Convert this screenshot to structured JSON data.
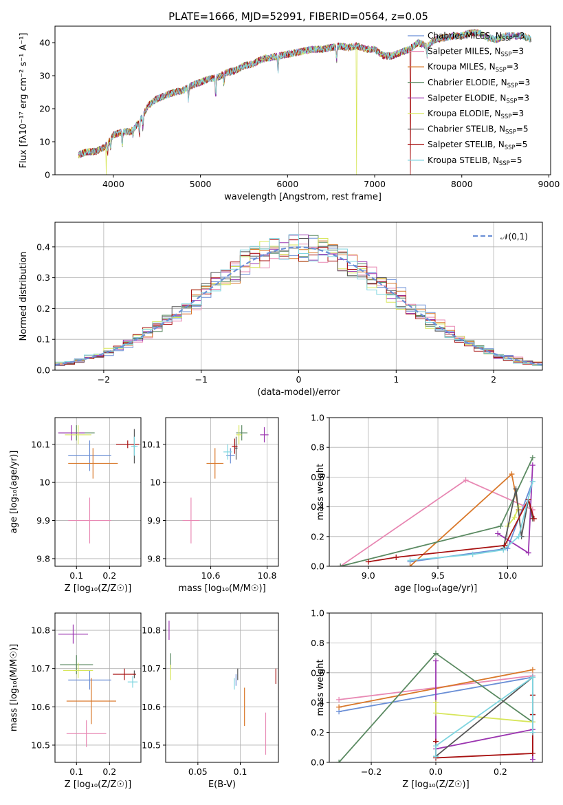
{
  "colors": {
    "Chabrier MILES": "#6b8fd6",
    "Salpeter MILES": "#e889b4",
    "Kroupa MILES": "#d9782a",
    "Chabrier ELODIE": "#5b8a62",
    "Salpeter ELODIE": "#9b35b0",
    "Kroupa ELODIE": "#d7e65a",
    "Chabrier STELIB": "#555555",
    "Salpeter STELIB": "#a81212",
    "Kroupa STELIB": "#7fd5e0"
  },
  "chart_data": [
    {
      "id": "spectrum",
      "type": "line",
      "title": "PLATE=1666, MJD=52991, FIBERID=0564, z=0.05",
      "xlabel": "wavelength [Angstrom, rest frame]",
      "ylabel": "Flux [fλ10⁻¹⁷ erg cm⁻² s⁻¹ A⁻¹]",
      "xlim": [
        3330,
        9020
      ],
      "ylim": [
        0,
        45
      ],
      "xticks": [
        4000,
        5000,
        6000,
        7000,
        8000,
        9000
      ],
      "yticks": [
        0,
        10,
        20,
        30,
        40
      ],
      "grid": false,
      "legend_position": "top-right",
      "continuum": [
        [
          3600,
          6
        ],
        [
          3700,
          7
        ],
        [
          3800,
          7
        ],
        [
          3900,
          8.5
        ],
        [
          3950,
          10
        ],
        [
          4000,
          12
        ],
        [
          4100,
          13
        ],
        [
          4200,
          13
        ],
        [
          4300,
          16
        ],
        [
          4400,
          21
        ],
        [
          4500,
          23
        ],
        [
          4600,
          24
        ],
        [
          4700,
          25
        ],
        [
          4800,
          25.5
        ],
        [
          4900,
          27
        ],
        [
          5000,
          28
        ],
        [
          5100,
          29
        ],
        [
          5200,
          29.5
        ],
        [
          5300,
          31
        ],
        [
          5400,
          31.5
        ],
        [
          5500,
          33
        ],
        [
          5600,
          33.5
        ],
        [
          5700,
          35
        ],
        [
          5800,
          35.5
        ],
        [
          5900,
          36
        ],
        [
          6000,
          36.5
        ],
        [
          6100,
          37
        ],
        [
          6200,
          37.5
        ],
        [
          6300,
          38
        ],
        [
          6400,
          38
        ],
        [
          6500,
          38.5
        ],
        [
          6600,
          39
        ],
        [
          6700,
          38.5
        ],
        [
          6800,
          39
        ],
        [
          6900,
          38
        ],
        [
          7000,
          38
        ],
        [
          7100,
          36
        ],
        [
          7200,
          36
        ],
        [
          7300,
          37
        ],
        [
          7400,
          38
        ],
        [
          7500,
          40
        ],
        [
          7600,
          39
        ],
        [
          7700,
          41
        ],
        [
          7800,
          41.5
        ],
        [
          7900,
          42
        ],
        [
          8000,
          42
        ],
        [
          8100,
          43
        ],
        [
          8200,
          43
        ],
        [
          8300,
          41.5
        ],
        [
          8400,
          41
        ],
        [
          8500,
          42
        ],
        [
          8600,
          42
        ],
        [
          8700,
          42
        ],
        [
          8800,
          41
        ]
      ],
      "absorption_lines": [
        [
          3934,
          3
        ],
        [
          3969,
          3
        ],
        [
          4102,
          4
        ],
        [
          4227,
          2
        ],
        [
          4300,
          4
        ],
        [
          4340,
          4
        ],
        [
          4861,
          4
        ],
        [
          5175,
          6
        ],
        [
          5270,
          3
        ],
        [
          5890,
          5
        ],
        [
          6563,
          4
        ],
        [
          7600,
          3
        ]
      ],
      "dropouts": [
        {
          "model": "Kroupa ELODIE",
          "wavelengths": [
            3920,
            6790
          ]
        },
        {
          "model": "Salpeter STELIB",
          "wavelengths": [
            7410
          ]
        }
      ],
      "series": [
        {
          "name": "Chabrier MILES, N_SSP=3"
        },
        {
          "name": "Salpeter MILES, N_SSP=3"
        },
        {
          "name": "Kroupa MILES, N_SSP=3"
        },
        {
          "name": "Chabrier ELODIE, N_SSP=3"
        },
        {
          "name": "Salpeter ELODIE, N_SSP=3"
        },
        {
          "name": "Kroupa ELODIE, N_SSP=3"
        },
        {
          "name": "Chabrier STELIB, N_SSP=5"
        },
        {
          "name": "Salpeter STELIB, N_SSP=5"
        },
        {
          "name": "Kroupa STELIB, N_SSP=5"
        }
      ]
    },
    {
      "id": "residuals",
      "type": "step",
      "xlabel": "(data-model)/error",
      "ylabel": "Normed distribution",
      "xlim": [
        -2.5,
        2.5
      ],
      "ylim": [
        0,
        0.48
      ],
      "xticks": [
        -2,
        -1,
        0,
        1,
        2
      ],
      "yticks": [
        0.0,
        0.1,
        0.2,
        0.3,
        0.4
      ],
      "grid": true,
      "legend_position": "top-right",
      "reference": {
        "label": "𝒩(0,1)",
        "mean": 0,
        "sigma": 1
      }
    },
    {
      "id": "age_vs_z",
      "type": "errorbar",
      "xlabel": "Z [log₁₀(Z/Z☉)]",
      "ylabel": "age  [log₁₀(age/yr)]",
      "xlim": [
        0.035,
        0.295
      ],
      "ylim": [
        9.78,
        10.17
      ],
      "xticks": [
        0.1,
        0.2
      ],
      "yticks": [
        9.8,
        9.9,
        10.0,
        10.1
      ],
      "grid": true,
      "points": [
        {
          "model": "Chabrier MILES",
          "x": 0.14,
          "y": 10.07,
          "xerr": 0.065,
          "yerr": 0.04
        },
        {
          "model": "Salpeter MILES",
          "x": 0.14,
          "y": 9.9,
          "xerr": 0.065,
          "yerr": 0.06
        },
        {
          "model": "Kroupa MILES",
          "x": 0.15,
          "y": 10.05,
          "xerr": 0.075,
          "yerr": 0.04
        },
        {
          "model": "Chabrier ELODIE",
          "x": 0.1,
          "y": 10.13,
          "xerr": 0.055,
          "yerr": 0.02
        },
        {
          "model": "Salpeter ELODIE",
          "x": 0.085,
          "y": 10.13,
          "xerr": 0.04,
          "yerr": 0.02
        },
        {
          "model": "Kroupa ELODIE",
          "x": 0.105,
          "y": 10.125,
          "xerr": 0.04,
          "yerr": 0.025
        },
        {
          "model": "Chabrier STELIB",
          "x": 0.275,
          "y": 10.095,
          "xerr": 0.005,
          "yerr": 0.045
        },
        {
          "model": "Salpeter STELIB",
          "x": 0.255,
          "y": 10.1,
          "xerr": 0.035,
          "yerr": 0.01
        },
        {
          "model": "Kroupa STELIB",
          "x": 0.275,
          "y": 10.095,
          "xerr": 0.01,
          "yerr": 0.025
        }
      ]
    },
    {
      "id": "age_vs_mass",
      "type": "errorbar",
      "xlabel": "mass [log₁₀(M/M☉)]",
      "ylabel": "",
      "xlim": [
        10.44,
        10.84
      ],
      "ylim": [
        9.78,
        10.17
      ],
      "xticks": [
        10.6,
        10.8
      ],
      "yticks": [
        9.8,
        9.9,
        10.0,
        10.1
      ],
      "grid": true,
      "points": [
        {
          "model": "Chabrier MILES",
          "x": 10.67,
          "y": 10.07,
          "xerr": 0.015,
          "yerr": 0.02
        },
        {
          "model": "Salpeter MILES",
          "x": 10.53,
          "y": 9.9,
          "xerr": 0.03,
          "yerr": 0.06
        },
        {
          "model": "Kroupa MILES",
          "x": 10.615,
          "y": 10.05,
          "xerr": 0.03,
          "yerr": 0.04
        },
        {
          "model": "Chabrier ELODIE",
          "x": 10.71,
          "y": 10.13,
          "xerr": 0.02,
          "yerr": 0.02
        },
        {
          "model": "Salpeter ELODIE",
          "x": 10.79,
          "y": 10.125,
          "xerr": 0.015,
          "yerr": 0.02
        },
        {
          "model": "Kroupa ELODIE",
          "x": 10.7,
          "y": 10.125,
          "xerr": 0.01,
          "yerr": 0.025
        },
        {
          "model": "Chabrier STELIB",
          "x": 10.69,
          "y": 10.09,
          "xerr": 0.005,
          "yerr": 0.03
        },
        {
          "model": "Salpeter STELIB",
          "x": 10.685,
          "y": 10.095,
          "xerr": 0.01,
          "yerr": 0.02
        },
        {
          "model": "Kroupa STELIB",
          "x": 10.66,
          "y": 10.08,
          "xerr": 0.015,
          "yerr": 0.02
        }
      ]
    },
    {
      "id": "massweight_vs_age",
      "type": "line",
      "xlabel": "age  [log₁₀(age/yr)]",
      "ylabel": "mass weight",
      "xlim": [
        8.72,
        10.25
      ],
      "ylim": [
        0,
        1.0
      ],
      "xticks": [
        9.0,
        9.5,
        10.0
      ],
      "yticks": [
        0.0,
        0.2,
        0.4,
        0.6,
        0.8,
        1.0
      ],
      "grid": true,
      "series": [
        {
          "model": "Chabrier MILES",
          "x": [
            9.3,
            10.0,
            10.18
          ],
          "y": [
            0.03,
            0.12,
            0.57
          ]
        },
        {
          "model": "Salpeter MILES",
          "x": [
            8.8,
            9.7,
            10.18
          ],
          "y": [
            0.0,
            0.58,
            0.38
          ]
        },
        {
          "model": "Kroupa MILES",
          "x": [
            9.3,
            10.03,
            10.08
          ],
          "y": [
            0.0,
            0.62,
            0.38
          ]
        },
        {
          "model": "Chabrier ELODIE",
          "x": [
            8.8,
            9.95,
            10.18
          ],
          "y": [
            0.0,
            0.27,
            0.73
          ]
        },
        {
          "model": "Salpeter ELODIE",
          "x": [
            9.93,
            10.15,
            10.18
          ],
          "y": [
            0.22,
            0.09,
            0.68
          ]
        },
        {
          "model": "Kroupa ELODIE",
          "x": [
            10.0,
            10.05,
            10.08
          ],
          "y": [
            0.27,
            0.33,
            0.4
          ]
        },
        {
          "model": "Chabrier STELIB",
          "x": [
            9.97,
            10.06,
            10.1,
            10.15,
            10.18
          ],
          "y": [
            0.12,
            0.52,
            0.2,
            0.45,
            0.32
          ]
        },
        {
          "model": "Salpeter STELIB",
          "x": [
            9.0,
            9.2,
            9.98,
            10.15,
            10.19
          ],
          "y": [
            0.03,
            0.06,
            0.14,
            0.45,
            0.32
          ]
        },
        {
          "model": "Kroupa STELIB",
          "x": [
            9.3,
            9.75,
            9.97,
            10.08,
            10.18
          ],
          "y": [
            0.04,
            0.08,
            0.11,
            0.2,
            0.57
          ]
        }
      ]
    },
    {
      "id": "mass_vs_z",
      "type": "errorbar",
      "xlabel": "Z [log₁₀(Z/Z☉)]",
      "ylabel": "mass [log₁₀(M/M☉)]",
      "xlim": [
        0.035,
        0.295
      ],
      "ylim": [
        10.455,
        10.845
      ],
      "xticks": [
        0.1,
        0.2
      ],
      "yticks": [
        10.5,
        10.6,
        10.7,
        10.8
      ],
      "grid": true,
      "points": [
        {
          "model": "Chabrier MILES",
          "x": 0.14,
          "y": 10.67,
          "xerr": 0.065,
          "yerr": 0.025
        },
        {
          "model": "Salpeter MILES",
          "x": 0.13,
          "y": 10.53,
          "xerr": 0.06,
          "yerr": 0.035
        },
        {
          "model": "Kroupa MILES",
          "x": 0.145,
          "y": 10.615,
          "xerr": 0.075,
          "yerr": 0.06
        },
        {
          "model": "Chabrier ELODIE",
          "x": 0.1,
          "y": 10.71,
          "xerr": 0.05,
          "yerr": 0.025
        },
        {
          "model": "Salpeter ELODIE",
          "x": 0.09,
          "y": 10.79,
          "xerr": 0.045,
          "yerr": 0.025
        },
        {
          "model": "Kroupa ELODIE",
          "x": 0.105,
          "y": 10.695,
          "xerr": 0.045,
          "yerr": 0.02
        },
        {
          "model": "Chabrier STELIB",
          "x": 0.275,
          "y": 10.685,
          "xerr": 0.005,
          "yerr": 0.01
        },
        {
          "model": "Salpeter STELIB",
          "x": 0.245,
          "y": 10.685,
          "xerr": 0.035,
          "yerr": 0.015
        },
        {
          "model": "Kroupa STELIB",
          "x": 0.27,
          "y": 10.665,
          "xerr": 0.015,
          "yerr": 0.015
        }
      ]
    },
    {
      "id": "mass_vs_ebv",
      "type": "errorbar",
      "xlabel": "E(B-V)",
      "ylabel": "",
      "xlim": [
        0.012,
        0.145
      ],
      "ylim": [
        10.455,
        10.845
      ],
      "xticks": [
        0.05,
        0.1
      ],
      "yticks": [
        10.5,
        10.6,
        10.7,
        10.8
      ],
      "grid": true,
      "points": [
        {
          "model": "Chabrier MILES",
          "x": 0.095,
          "y": 10.67,
          "yerr": 0.015
        },
        {
          "model": "Salpeter MILES",
          "x": 0.13,
          "y": 10.53,
          "yerr": 0.055
        },
        {
          "model": "Kroupa MILES",
          "x": 0.105,
          "y": 10.6,
          "yerr": 0.05
        },
        {
          "model": "Chabrier ELODIE",
          "x": 0.018,
          "y": 10.72,
          "yerr": 0.02
        },
        {
          "model": "Salpeter ELODIE",
          "x": 0.016,
          "y": 10.8,
          "yerr": 0.025
        },
        {
          "model": "Kroupa ELODIE",
          "x": 0.018,
          "y": 10.69,
          "yerr": 0.02
        },
        {
          "model": "Chabrier STELIB",
          "x": 0.097,
          "y": 10.685,
          "yerr": 0.015
        },
        {
          "model": "Salpeter STELIB",
          "x": 0.142,
          "y": 10.68,
          "yerr": 0.02
        },
        {
          "model": "Kroupa STELIB",
          "x": 0.093,
          "y": 10.66,
          "yerr": 0.015
        }
      ]
    },
    {
      "id": "massweight_vs_z",
      "type": "line",
      "xlabel": "Z [log₁₀(Z/Z☉)]",
      "ylabel": "mass weight",
      "xlim": [
        -0.33,
        0.33
      ],
      "ylim": [
        0,
        1.0
      ],
      "xticks": [
        -0.2,
        0.0,
        0.2
      ],
      "yticks": [
        0.0,
        0.2,
        0.4,
        0.6,
        0.8,
        1.0
      ],
      "grid": true,
      "series": [
        {
          "model": "Chabrier MILES",
          "x": [
            -0.3,
            0.3
          ],
          "y": [
            0.34,
            0.57
          ]
        },
        {
          "model": "Salpeter MILES",
          "x": [
            -0.3,
            0.3
          ],
          "y": [
            0.42,
            0.58
          ]
        },
        {
          "model": "Kroupa MILES",
          "x": [
            -0.3,
            0.3
          ],
          "y": [
            0.37,
            0.62
          ]
        },
        {
          "model": "Chabrier ELODIE",
          "x": [
            -0.3,
            0.0,
            0.3
          ],
          "y": [
            0.0,
            0.73,
            0.27
          ]
        },
        {
          "model": "Salpeter ELODIE",
          "x": [
            0.0,
            0.0,
            0.3,
            0.3
          ],
          "y": [
            0.68,
            0.09,
            0.22,
            0.02
          ]
        },
        {
          "model": "Kroupa ELODIE",
          "x": [
            0.0,
            0.0,
            0.3
          ],
          "y": [
            0.4,
            0.33,
            0.27
          ]
        },
        {
          "model": "Chabrier STELIB",
          "x": [
            0.0,
            0.3,
            0.3,
            0.3
          ],
          "y": [
            0.04,
            0.57,
            0.32,
            0.45
          ]
        },
        {
          "model": "Salpeter STELIB",
          "x": [
            0.0,
            0.0,
            0.3,
            0.3,
            0.3
          ],
          "y": [
            0.14,
            0.03,
            0.06,
            0.32,
            0.45
          ]
        },
        {
          "model": "Kroupa STELIB",
          "x": [
            0.0,
            0.0,
            0.3,
            0.3
          ],
          "y": [
            0.04,
            0.11,
            0.57,
            0.2
          ]
        }
      ]
    }
  ]
}
